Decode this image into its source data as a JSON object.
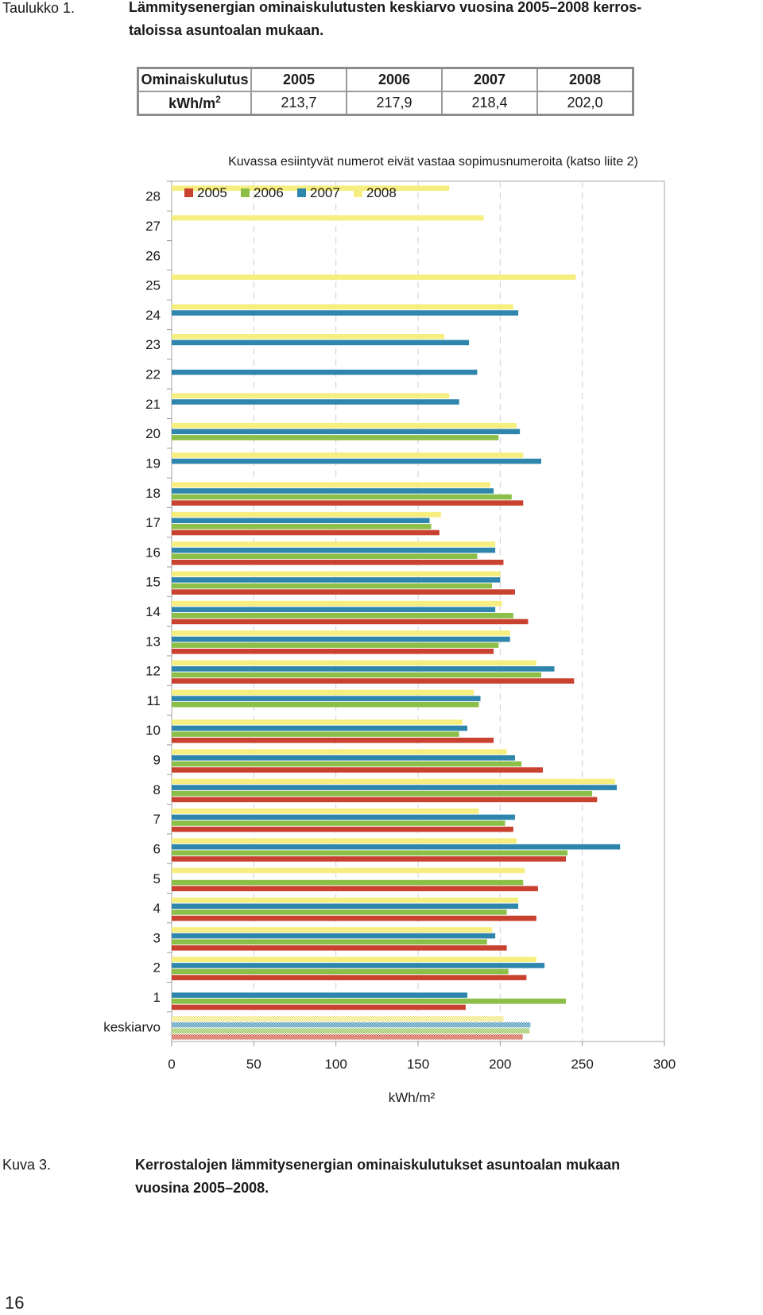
{
  "table_caption": {
    "label": "Taulukko 1.",
    "line1": "Lämmitysenergian ominaiskulutusten keskiarvo vuosina 2005–2008 kerros-",
    "line2": "taloissa asuntoalan mukaan."
  },
  "summary_table": {
    "headers": [
      "Ominaiskulutus",
      "2005",
      "2006",
      "2007",
      "2008"
    ],
    "row_label": "kWh/m",
    "row_label_sup": "2",
    "values": [
      "213,7",
      "217,9",
      "218,4",
      "202,0"
    ]
  },
  "chart_data": {
    "type": "bar",
    "orientation": "horizontal",
    "title": "Kuvassa esiintyvät numerot eivät vastaa sopimusnumeroita (katso liite 2)",
    "xlabel": "kWh/m²",
    "ylabel": "",
    "xlim": [
      0,
      300
    ],
    "xticks": [
      "0",
      "50",
      "100",
      "150",
      "200",
      "250",
      "300"
    ],
    "grid": "vertical dashed",
    "legend_position": "top-left",
    "categories": [
      "keskiarvo",
      "1",
      "2",
      "3",
      "4",
      "5",
      "6",
      "7",
      "8",
      "9",
      "10",
      "11",
      "12",
      "13",
      "14",
      "15",
      "16",
      "17",
      "18",
      "19",
      "20",
      "21",
      "22",
      "23",
      "24",
      "25",
      "26",
      "27",
      "28"
    ],
    "series": [
      {
        "name": "2005",
        "color": "#c9412f",
        "values": [
          213.7,
          179,
          216,
          204,
          222,
          223,
          240,
          208,
          259,
          226,
          196,
          null,
          245,
          196,
          217,
          209,
          202,
          163,
          214,
          null,
          null,
          null,
          null,
          null,
          null,
          null,
          null,
          null,
          null
        ]
      },
      {
        "name": "2006",
        "color": "#8cbf48",
        "values": [
          217.9,
          240,
          205,
          192,
          204,
          214,
          241,
          203,
          256,
          213,
          175,
          187,
          225,
          199,
          208,
          195,
          186,
          158,
          207,
          null,
          199,
          null,
          null,
          null,
          null,
          null,
          null,
          null,
          null
        ]
      },
      {
        "name": "2007",
        "color": "#2f86ad",
        "values": [
          218.4,
          180,
          227,
          197,
          211,
          null,
          273,
          209,
          271,
          209,
          180,
          188,
          233,
          206,
          197,
          200,
          197,
          157,
          196,
          225,
          212,
          175,
          186,
          181,
          211,
          null,
          null,
          null,
          null
        ]
      },
      {
        "name": "2008",
        "color": "#f7ee80",
        "values": [
          202.0,
          null,
          222,
          195,
          211,
          215,
          210,
          187,
          270,
          204,
          177,
          184,
          222,
          206,
          201,
          200,
          197,
          164,
          194,
          214,
          210,
          169,
          null,
          166,
          208,
          246,
          null,
          190,
          169
        ]
      }
    ]
  },
  "figure_caption": {
    "label": "Kuva 3.",
    "line1": "Kerrostalojen lämmitysenergian ominaiskulutukset asuntoalan mukaan",
    "line2": "vuosina 2005–2008."
  },
  "page_number": "16"
}
